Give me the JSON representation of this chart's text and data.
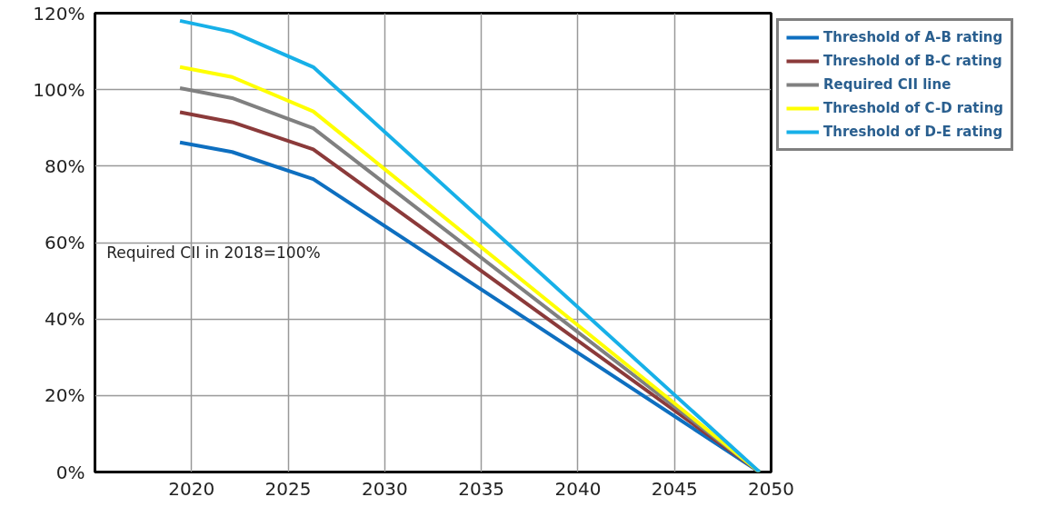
{
  "chart_data": {
    "type": "line",
    "x": [
      2019.4,
      2022.1,
      2026.3,
      2049.4
    ],
    "series": [
      {
        "name": "Threshold of A-B rating",
        "color": "#0e6fc0",
        "values": [
          86.2,
          83.7,
          76.6,
          0
        ]
      },
      {
        "name": "Threshold of B-C rating",
        "color": "#8b3a3a",
        "values": [
          94.1,
          91.5,
          84.4,
          0
        ]
      },
      {
        "name": "Required CII line",
        "color": "#808080",
        "values": [
          100.4,
          97.8,
          89.9,
          0
        ]
      },
      {
        "name": "Threshold of C-D rating",
        "color": "#ffff00",
        "values": [
          105.9,
          103.3,
          94.3,
          0
        ]
      },
      {
        "name": "Threshold of D-E rating",
        "color": "#17b0e8",
        "values": [
          118.0,
          115.1,
          105.9,
          0
        ]
      }
    ],
    "xlim": [
      2015,
      2050
    ],
    "xticks": [
      2020,
      2025,
      2030,
      2035,
      2040,
      2045,
      2050
    ],
    "ylim": [
      0,
      120
    ],
    "yticks": [
      {
        "value": 0,
        "label": "0%"
      },
      {
        "value": 20,
        "label": "20%"
      },
      {
        "value": 40,
        "label": "40%"
      },
      {
        "value": 60,
        "label": "60%"
      },
      {
        "value": 80,
        "label": "80%"
      },
      {
        "value": 100,
        "label": "100%"
      },
      {
        "value": 120,
        "label": "120%"
      }
    ],
    "annotations": [
      "Required CII in 2018=100%"
    ],
    "grid": true,
    "legend": "top right",
    "marker": "none",
    "line_style": "solid"
  }
}
